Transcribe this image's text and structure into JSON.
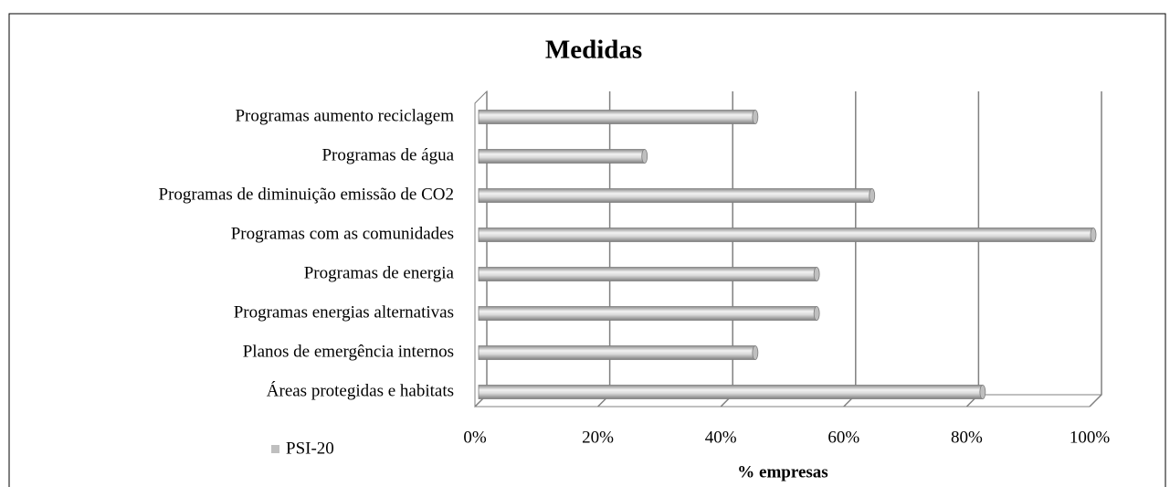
{
  "chart_data": {
    "type": "bar",
    "orientation": "horizontal",
    "title": "Medidas",
    "categories": [
      "Programas aumento reciclagem",
      "Programas de água",
      "Programas de diminuição emissão de CO2",
      "Programas com as comunidades",
      "Programas de energia",
      "Programas energias alternativas",
      "Planos de emergência internos",
      "Áreas protegidas e habitats"
    ],
    "series": [
      {
        "name": "PSI-20",
        "color": "#bfbfbf",
        "values": [
          45,
          27,
          64,
          100,
          55,
          55,
          45,
          82
        ]
      }
    ],
    "xlim": [
      0,
      100
    ],
    "xticks": [
      {
        "value": 0,
        "label": "0%"
      },
      {
        "value": 20,
        "label": "20%"
      },
      {
        "value": 40,
        "label": "40%"
      },
      {
        "value": 60,
        "label": "60%"
      },
      {
        "value": 80,
        "label": "80%"
      },
      {
        "value": 100,
        "label": "100%"
      }
    ],
    "xlabel": "% empresas",
    "grid": true,
    "legend": "bottom-left"
  }
}
